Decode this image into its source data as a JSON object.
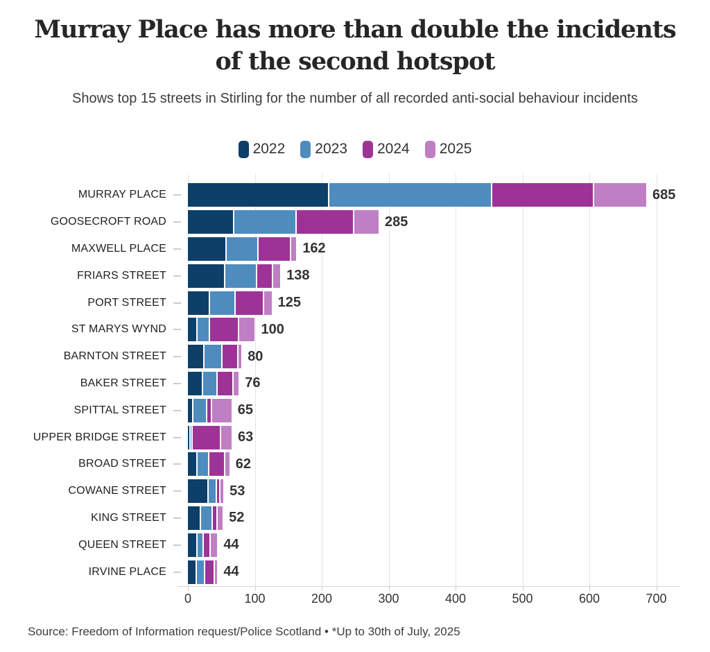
{
  "header": {
    "title_line1": "Murray Place has more than double the incidents",
    "title_line2": "of the second hotspot",
    "subtitle": "Shows top 15 streets in Stirling for the number of all recorded anti-social behaviour incidents"
  },
  "legend": {
    "items": [
      {
        "label": "2022",
        "color": "#0d3f69"
      },
      {
        "label": "2023",
        "color": "#4f8cbe"
      },
      {
        "label": "2024",
        "color": "#9e3397"
      },
      {
        "label": "2025",
        "color": "#bf7fc5"
      }
    ]
  },
  "chart_data": {
    "type": "bar",
    "orientation": "horizontal",
    "stacked": true,
    "title": "Murray Place has more than double the incidents of the second hotspot",
    "subtitle": "Shows top 15 streets in Stirling for the number of all recorded anti-social behaviour incidents",
    "categories": [
      "MURRAY PLACE",
      "GOOSECROFT ROAD",
      "MAXWELL PLACE",
      "FRIARS STREET",
      "PORT STREET",
      "ST MARYS WYND",
      "BARNTON STREET",
      "BAKER STREET",
      "SPITTAL STREET",
      "UPPER BRIDGE STREET",
      "BROAD STREET",
      "COWANE STREET",
      "KING STREET",
      "QUEEN STREET",
      "IRVINE PLACE"
    ],
    "series": [
      {
        "name": "2022",
        "color": "#0d3f69",
        "values": [
          211,
          69,
          58,
          56,
          33,
          14,
          25,
          23,
          8,
          3,
          15,
          31,
          20,
          15,
          13
        ]
      },
      {
        "name": "2023",
        "color": "#4f8cbe",
        "values": [
          244,
          94,
          48,
          48,
          38,
          19,
          27,
          22,
          21,
          2,
          17,
          13,
          17,
          9,
          13
        ]
      },
      {
        "name": "2024",
        "color": "#9e3397",
        "values": [
          152,
          86,
          48,
          23,
          43,
          44,
          24,
          23,
          7,
          42,
          24,
          5,
          8,
          10,
          14
        ]
      },
      {
        "name": "2025",
        "color": "#bf7fc5",
        "values": [
          78,
          36,
          8,
          11,
          11,
          23,
          4,
          8,
          29,
          16,
          6,
          4,
          7,
          10,
          4
        ]
      }
    ],
    "totals": [
      685,
      285,
      162,
      138,
      125,
      100,
      80,
      76,
      65,
      63,
      62,
      53,
      52,
      44,
      44
    ],
    "x_axis": {
      "ticks": [
        0,
        100,
        200,
        300,
        400,
        500,
        600,
        700
      ],
      "min": 0,
      "max": 700
    },
    "grid": "vertical",
    "legend_position": "top"
  },
  "footer": {
    "source": "Source: Freedom of Information request/Police Scotland • *Up to 30th of July, 2025"
  }
}
